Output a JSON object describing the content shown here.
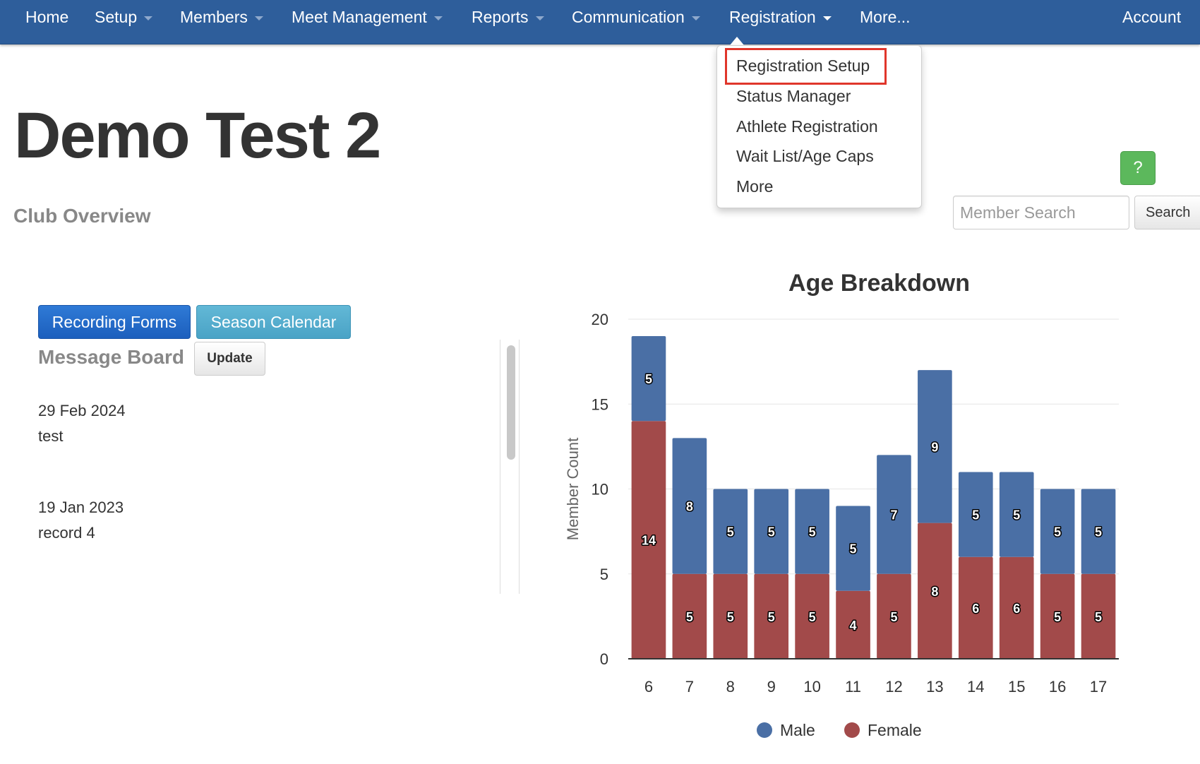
{
  "nav": {
    "items": [
      {
        "label": "Home",
        "caret": false
      },
      {
        "label": "Setup",
        "caret": true
      },
      {
        "label": "Members",
        "caret": true
      },
      {
        "label": "Meet Management",
        "caret": true
      },
      {
        "label": "Reports",
        "caret": true
      },
      {
        "label": "Communication",
        "caret": true
      },
      {
        "label": "Registration",
        "caret": true
      },
      {
        "label": "More...",
        "caret": false
      }
    ],
    "account": "Account"
  },
  "registration_menu": {
    "items": [
      "Registration Setup",
      "Status Manager",
      "Athlete Registration",
      "Wait List/Age Caps",
      "More"
    ],
    "highlighted": "Registration Setup"
  },
  "page": {
    "title": "Demo Test 2",
    "subtitle": "Club Overview"
  },
  "help_button": "?",
  "search": {
    "placeholder": "Member Search",
    "button": "Search"
  },
  "actions": {
    "recording_forms": "Recording Forms",
    "season_calendar": "Season Calendar"
  },
  "message_board": {
    "title": "Message Board",
    "update_button": "Update",
    "messages": [
      {
        "date": "29 Feb 2024",
        "text": "test"
      },
      {
        "date": "19 Jan 2023",
        "text": "record 4"
      }
    ]
  },
  "colors": {
    "navbar": "#2e5e9b",
    "male": "#4a6fa5",
    "female": "#a24a4a",
    "highlight": "#e0362b"
  },
  "chart_data": {
    "type": "bar",
    "stacked": true,
    "title": "Age Breakdown",
    "xlabel": "",
    "ylabel": "Member Count",
    "categories": [
      "6",
      "7",
      "8",
      "9",
      "10",
      "11",
      "12",
      "13",
      "14",
      "15",
      "16",
      "17"
    ],
    "series": [
      {
        "name": "Female",
        "color": "#a24a4a",
        "values": [
          14,
          5,
          5,
          5,
          5,
          4,
          5,
          8,
          6,
          6,
          5,
          5
        ]
      },
      {
        "name": "Male",
        "color": "#4a6fa5",
        "values": [
          5,
          8,
          5,
          5,
          5,
          5,
          7,
          9,
          5,
          5,
          5,
          5
        ]
      }
    ],
    "ylim": [
      0,
      20
    ],
    "yticks": [
      0,
      5,
      10,
      15,
      20
    ],
    "grid": true,
    "legend": "bottom",
    "legend_order": [
      "Male",
      "Female"
    ]
  }
}
